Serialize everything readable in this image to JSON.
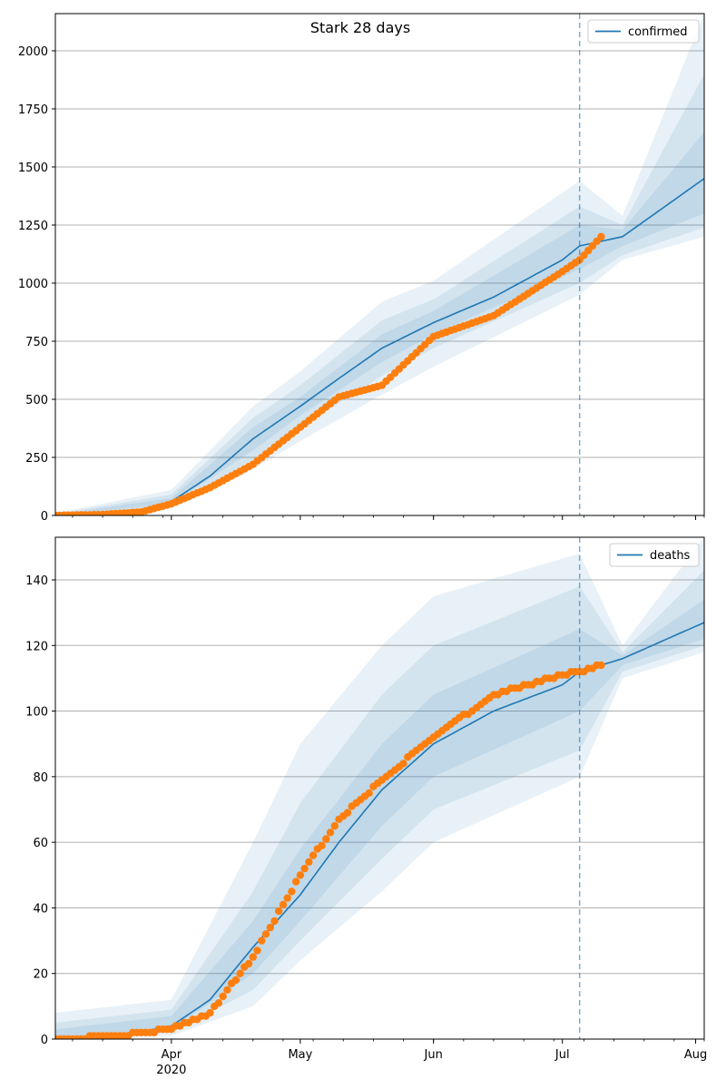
{
  "suptitle": "Stark 28 days",
  "colors": {
    "line": "#1f77b4",
    "observed": "#ff7f0e",
    "band": "#1f77b4",
    "grid": "#b0b0b0",
    "cutoff": "#1f77b4"
  },
  "x_ticks": {
    "major_labels": [
      "Apr",
      "May",
      "Jun",
      "Jul",
      "Aug"
    ],
    "major_dates": [
      "2020-04-01",
      "2020-05-01",
      "2020-06-01",
      "2020-07-01",
      "2020-08-01"
    ],
    "year_label": "2020",
    "minor": "weekly (Mondays)"
  },
  "chart_data": [
    {
      "type": "line",
      "title": "Stark 28 days",
      "legend": "confirmed",
      "legend_position": "top-right",
      "grid": "horizontal",
      "xlim": [
        "2020-03-05",
        "2020-08-03"
      ],
      "ylim": [
        0,
        2160
      ],
      "yticks": [
        0,
        250,
        500,
        750,
        1000,
        1250,
        1500,
        1750,
        2000
      ],
      "cutoff_date": "2020-07-05",
      "series": [
        {
          "name": "confirmed",
          "kind": "model",
          "x": [
            "2020-03-05",
            "2020-03-15",
            "2020-03-25",
            "2020-04-01",
            "2020-04-10",
            "2020-04-20",
            "2020-05-01",
            "2020-05-10",
            "2020-05-20",
            "2020-06-01",
            "2020-06-15",
            "2020-07-01",
            "2020-07-05",
            "2020-07-15",
            "2020-08-03"
          ],
          "y": [
            0,
            5,
            20,
            60,
            170,
            330,
            470,
            590,
            720,
            830,
            940,
            1100,
            1160,
            1200,
            1450
          ]
        },
        {
          "name": "",
          "kind": "observed",
          "x": [
            "2020-03-05",
            "2020-03-15",
            "2020-03-25",
            "2020-04-01",
            "2020-04-10",
            "2020-04-20",
            "2020-05-01",
            "2020-05-10",
            "2020-05-20",
            "2020-06-01",
            "2020-06-15",
            "2020-07-01",
            "2020-07-05",
            "2020-07-10"
          ],
          "y": [
            0,
            3,
            15,
            50,
            120,
            220,
            380,
            510,
            560,
            770,
            860,
            1050,
            1100,
            1200
          ]
        }
      ],
      "bands": [
        {
          "x": [
            "2020-03-05",
            "2020-04-01",
            "2020-04-20",
            "2020-05-01",
            "2020-05-20",
            "2020-06-01",
            "2020-07-05",
            "2020-07-15",
            "2020-08-03"
          ],
          "lower": [
            0,
            30,
            200,
            320,
            520,
            640,
            950,
            1100,
            1200
          ],
          "upper": [
            10,
            110,
            470,
            620,
            920,
            1010,
            1440,
            1290,
            2160
          ]
        },
        {
          "x": [
            "2020-03-05",
            "2020-04-01",
            "2020-04-20",
            "2020-05-01",
            "2020-05-20",
            "2020-06-01",
            "2020-07-05",
            "2020-07-15",
            "2020-08-03"
          ],
          "lower": [
            0,
            40,
            240,
            380,
            600,
            720,
            1000,
            1120,
            1240
          ],
          "upper": [
            6,
            90,
            420,
            560,
            840,
            930,
            1330,
            1250,
            1900
          ]
        },
        {
          "x": [
            "2020-03-05",
            "2020-04-01",
            "2020-04-20",
            "2020-05-01",
            "2020-05-20",
            "2020-06-01",
            "2020-07-05",
            "2020-07-15",
            "2020-08-03"
          ],
          "lower": [
            0,
            50,
            280,
            430,
            660,
            780,
            1060,
            1160,
            1300
          ],
          "upper": [
            3,
            75,
            380,
            510,
            780,
            880,
            1250,
            1230,
            1650
          ]
        }
      ]
    },
    {
      "type": "line",
      "title": "",
      "legend": "deaths",
      "legend_position": "top-right",
      "grid": "horizontal",
      "xlim": [
        "2020-03-05",
        "2020-08-03"
      ],
      "ylim": [
        0,
        153
      ],
      "yticks": [
        0,
        20,
        40,
        60,
        80,
        100,
        120,
        140
      ],
      "cutoff_date": "2020-07-05",
      "series": [
        {
          "name": "deaths",
          "kind": "model",
          "x": [
            "2020-03-05",
            "2020-03-20",
            "2020-04-01",
            "2020-04-10",
            "2020-04-20",
            "2020-05-01",
            "2020-05-10",
            "2020-05-20",
            "2020-06-01",
            "2020-06-15",
            "2020-07-01",
            "2020-07-05",
            "2020-07-15",
            "2020-08-03"
          ],
          "y": [
            0,
            1,
            4,
            12,
            28,
            44,
            60,
            76,
            90,
            100,
            108,
            112,
            116,
            127
          ]
        },
        {
          "name": "",
          "kind": "observed",
          "x": [
            "2020-03-05",
            "2020-03-20",
            "2020-04-01",
            "2020-04-10",
            "2020-04-20",
            "2020-05-01",
            "2020-05-10",
            "2020-05-20",
            "2020-06-01",
            "2020-06-15",
            "2020-07-01",
            "2020-07-05",
            "2020-07-10"
          ],
          "y": [
            0,
            1,
            3,
            8,
            25,
            50,
            67,
            79,
            92,
            105,
            111,
            112,
            114
          ]
        }
      ],
      "bands": [
        {
          "x": [
            "2020-03-05",
            "2020-04-01",
            "2020-04-20",
            "2020-05-01",
            "2020-05-20",
            "2020-06-01",
            "2020-07-05",
            "2020-07-15",
            "2020-08-03"
          ],
          "lower": [
            0,
            1,
            10,
            24,
            45,
            60,
            80,
            110,
            118
          ],
          "upper": [
            8,
            12,
            60,
            90,
            120,
            135,
            148,
            120,
            153
          ]
        },
        {
          "x": [
            "2020-03-05",
            "2020-04-01",
            "2020-04-20",
            "2020-05-01",
            "2020-05-20",
            "2020-06-01",
            "2020-07-05",
            "2020-07-15",
            "2020-08-03"
          ],
          "lower": [
            0,
            2,
            15,
            30,
            55,
            70,
            88,
            112,
            120
          ],
          "upper": [
            5,
            9,
            45,
            72,
            105,
            120,
            138,
            118,
            143
          ]
        },
        {
          "x": [
            "2020-03-05",
            "2020-04-01",
            "2020-04-20",
            "2020-05-01",
            "2020-05-20",
            "2020-06-01",
            "2020-07-05",
            "2020-07-15",
            "2020-08-03"
          ],
          "lower": [
            0,
            3,
            20,
            36,
            65,
            80,
            100,
            114,
            122
          ],
          "upper": [
            3,
            7,
            36,
            58,
            90,
            105,
            125,
            117,
            134
          ]
        }
      ]
    }
  ]
}
